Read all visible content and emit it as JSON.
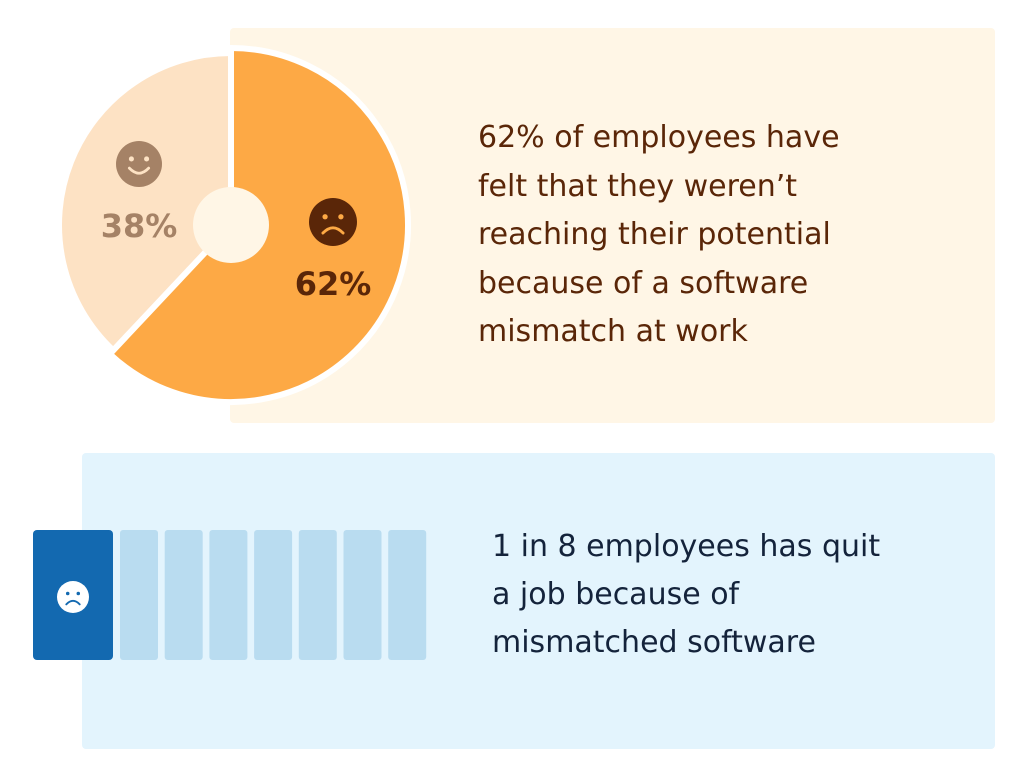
{
  "colors": {
    "top_panel_bg": "#fff6e6",
    "bottom_panel_bg": "#e3f4fd",
    "pie_happy": "#fde2c4",
    "pie_unhappy": "#fda945",
    "happy_face": "#a58266",
    "unhappy_face": "#5a2608",
    "top_text": "#5a2608",
    "person_highlight": "#1369b0",
    "person_other": "#b9dcf0",
    "bottom_text": "#14233b"
  },
  "chart_data": [
    {
      "type": "pie",
      "categories": [
        "happy",
        "unhappy"
      ],
      "values": [
        38,
        62
      ],
      "labels": [
        "38%",
        "62%"
      ],
      "icons": [
        "smile-face-icon",
        "frown-face-icon"
      ]
    },
    {
      "type": "icon-array",
      "total": 8,
      "highlighted": 1,
      "highlight_icon": "frown-face-icon"
    }
  ],
  "stats": {
    "top_lines": [
      "62% of employees have",
      "felt that they weren’t",
      "reaching their potential",
      "because of a software",
      "mismatch at work"
    ],
    "bottom_lines": [
      "1 in 8 employees has quit",
      "a job because of",
      "mismatched software"
    ]
  }
}
